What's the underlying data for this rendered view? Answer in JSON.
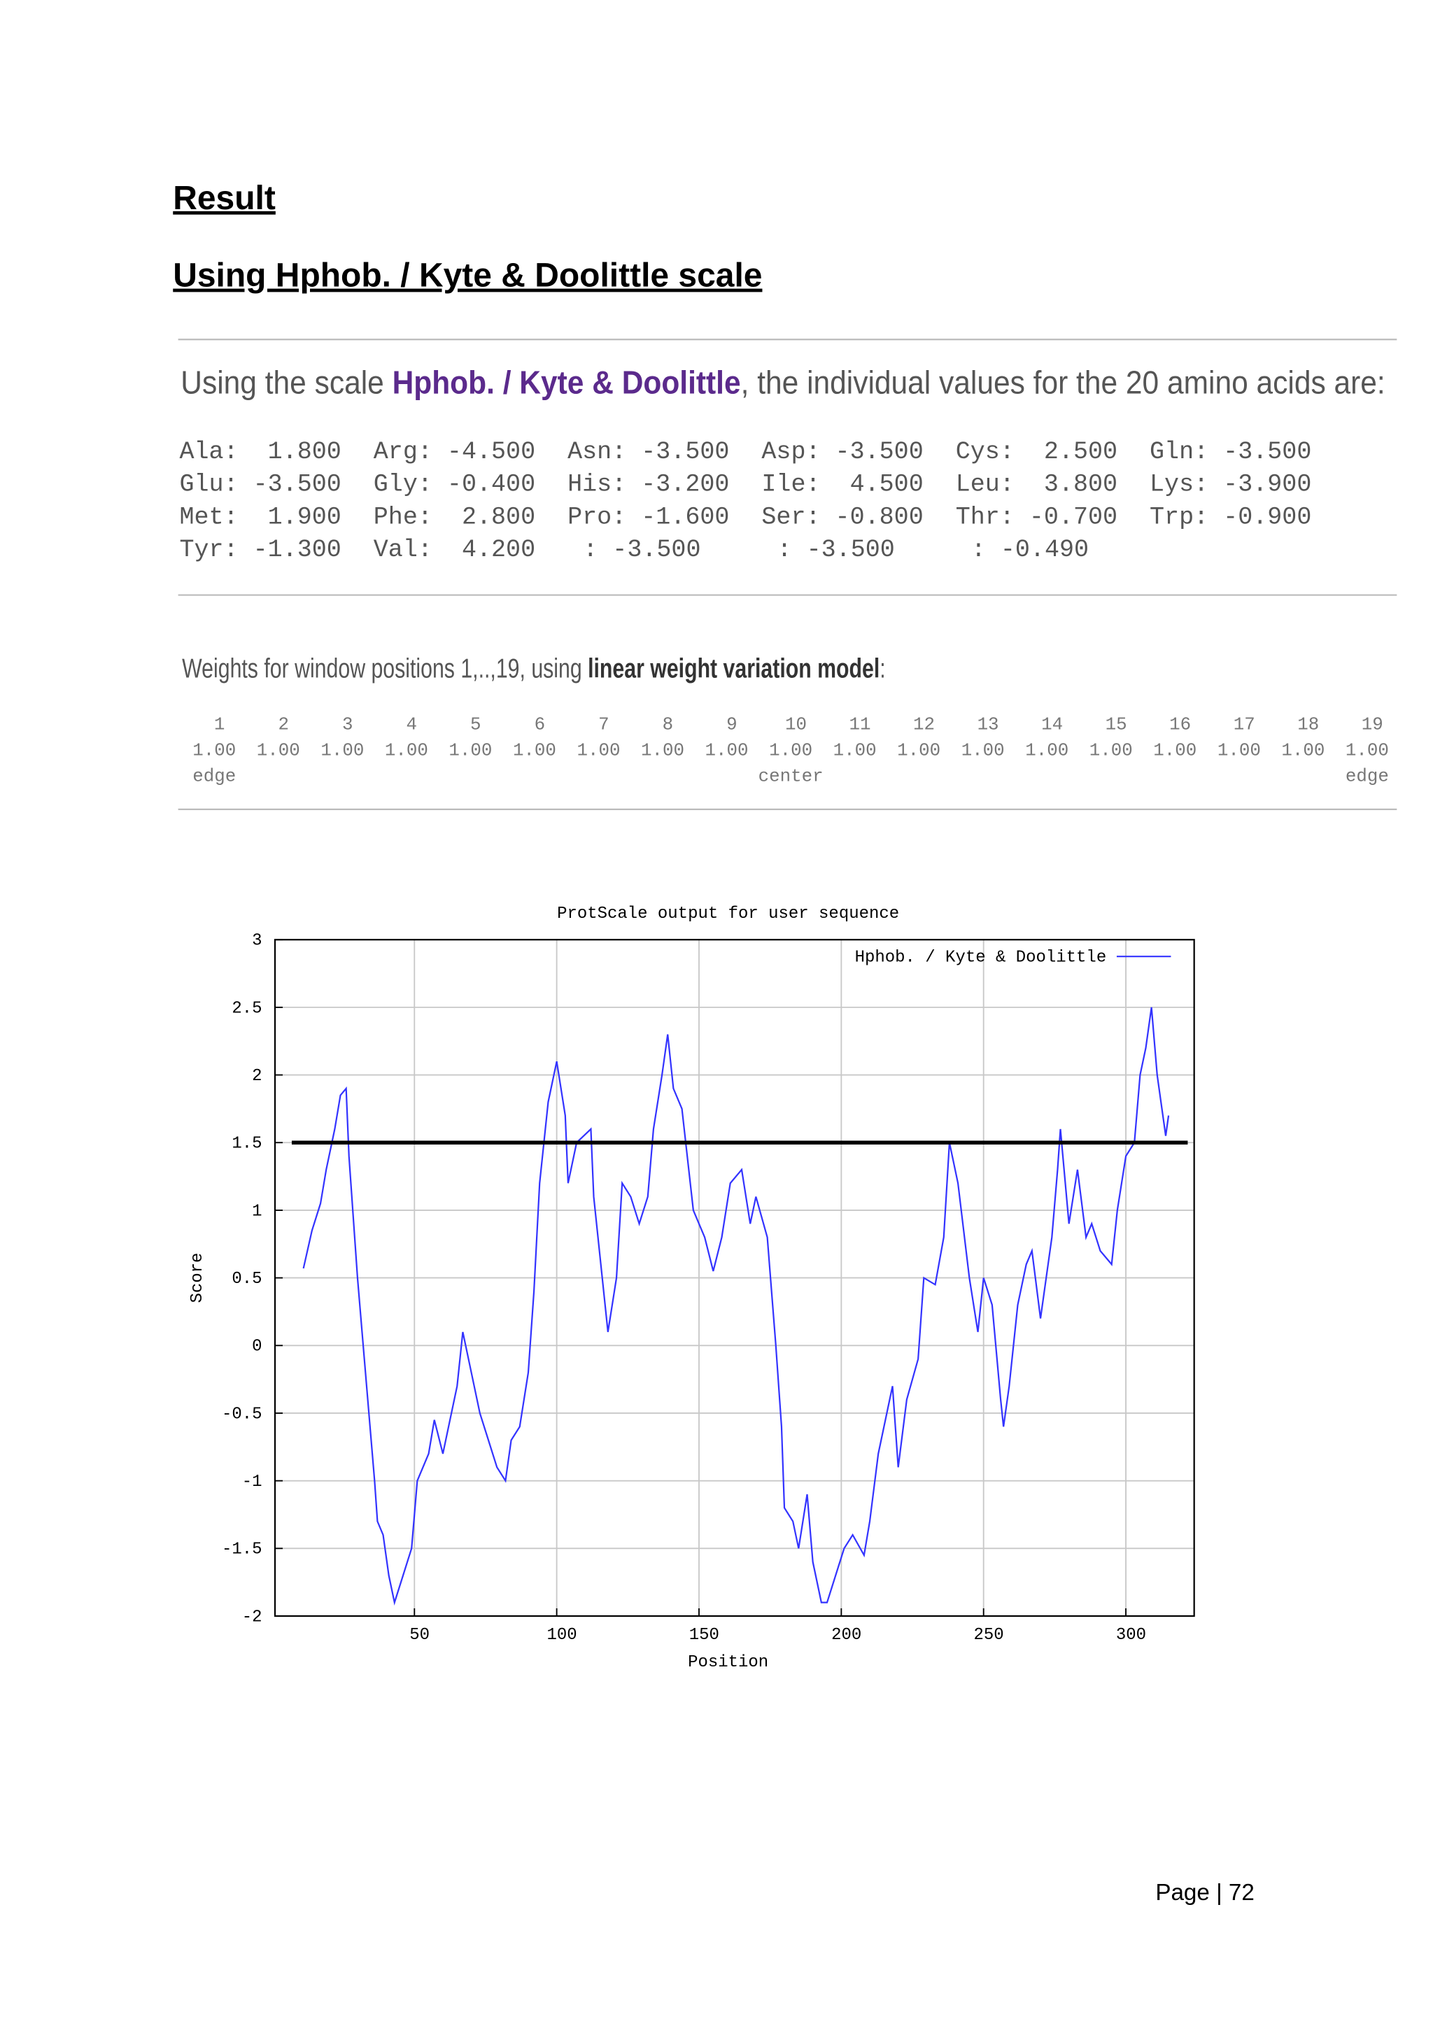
{
  "headings": [
    "Result",
    "Using Hphob. / Kyte & Doolittle scale"
  ],
  "scale_intro": {
    "before": "Using the scale ",
    "scale": "Hphob. / Kyte & Doolittle",
    "after": ", the individual values for the 20 amino acids are:"
  },
  "amino_acid_table": {
    "rows": [
      [
        "Ala:  1.800",
        "Arg: -4.500",
        "Asn: -3.500",
        "Asp: -3.500",
        "Cys:  2.500",
        "Gln: -3.500"
      ],
      [
        "Glu: -3.500",
        "Gly: -0.400",
        "His: -3.200",
        "Ile:  4.500",
        "Leu:  3.800",
        "Lys: -3.900"
      ],
      [
        "Met:  1.900",
        "Phe:  2.800",
        "Pro: -1.600",
        "Ser: -0.800",
        "Thr: -0.700",
        "Trp: -0.900"
      ],
      [
        "Tyr: -1.300",
        "Val:  4.200",
        ": -3.500",
        ": -3.500",
        ": -0.490"
      ]
    ]
  },
  "weights": {
    "intro": "Weights for window positions 1,..,19, using ",
    "model": "linear weight variation model",
    "end": ":",
    "positions": [
      "1",
      "2",
      "3",
      "4",
      "5",
      "6",
      "7",
      "8",
      "9",
      "10",
      "11",
      "12",
      "13",
      "14",
      "15",
      "16",
      "17",
      "18",
      "19"
    ],
    "values": [
      "1.00",
      "1.00",
      "1.00",
      "1.00",
      "1.00",
      "1.00",
      "1.00",
      "1.00",
      "1.00",
      "1.00",
      "1.00",
      "1.00",
      "1.00",
      "1.00",
      "1.00",
      "1.00",
      "1.00",
      "1.00",
      "1.00"
    ],
    "labels": [
      "edge",
      "center",
      "edge"
    ]
  },
  "chart_data": {
    "type": "line",
    "title": "ProtScale output for user sequence",
    "x_label": "Position",
    "y_label": "Score",
    "xlim": [
      1,
      324
    ],
    "xticks": [
      50,
      100,
      150,
      200,
      250,
      300
    ],
    "ylim": [
      -2,
      3
    ],
    "yticks": [
      -2,
      -1.5,
      -1,
      -0.5,
      0,
      0.5,
      1,
      1.5,
      2,
      2.5,
      3
    ],
    "grid": true,
    "legend": "upper right",
    "reference_line": {
      "value": 1.5,
      "color": "#000000"
    },
    "x": [
      11,
      14,
      17,
      19,
      22,
      24,
      26,
      27,
      30,
      32,
      34,
      36,
      37,
      39,
      41,
      43,
      46,
      49,
      51,
      55,
      57,
      60,
      62,
      65,
      67,
      70,
      73,
      76,
      79,
      82,
      84,
      87,
      90,
      92,
      94,
      97,
      100,
      103,
      104,
      107,
      112,
      113,
      116,
      118,
      121,
      123,
      126,
      129,
      132,
      134,
      137,
      139,
      141,
      144,
      148,
      152,
      155,
      158,
      161,
      165,
      168,
      170,
      174,
      177,
      179,
      180,
      183,
      185,
      188,
      190,
      193,
      195,
      198,
      201,
      204,
      208,
      210,
      213,
      216,
      218,
      220,
      223,
      227,
      229,
      233,
      236,
      238,
      241,
      245,
      248,
      250,
      253,
      256,
      257,
      259,
      262,
      265,
      267,
      270,
      274,
      276,
      277,
      280,
      283,
      286,
      288,
      291,
      295,
      297,
      300,
      303,
      305,
      307,
      309,
      311,
      313,
      314,
      315
    ],
    "series": [
      {
        "name": "Hphob. / Kyte & Doolittle",
        "color": "#3333ff",
        "values": [
          0.57,
          0.85,
          1.05,
          1.3,
          1.6,
          1.85,
          1.9,
          1.4,
          0.5,
          0,
          -0.5,
          -1.0,
          -1.3,
          -1.4,
          -1.7,
          -1.9,
          -1.7,
          -1.5,
          -1.0,
          -0.8,
          -0.55,
          -0.8,
          -0.6,
          -0.3,
          0.1,
          -0.2,
          -0.5,
          -0.7,
          -0.9,
          -1.0,
          -0.7,
          -0.6,
          -0.2,
          0.4,
          1.2,
          1.8,
          2.1,
          1.7,
          1.2,
          1.5,
          1.6,
          1.1,
          0.5,
          0.1,
          0.5,
          1.2,
          1.1,
          0.9,
          1.1,
          1.6,
          2.0,
          2.3,
          1.9,
          1.75,
          1.0,
          0.8,
          0.55,
          0.8,
          1.2,
          1.3,
          0.9,
          1.1,
          0.8,
          0.0,
          -0.6,
          -1.2,
          -1.3,
          -1.5,
          -1.1,
          -1.6,
          -1.9,
          -1.9,
          -1.7,
          -1.5,
          -1.4,
          -1.55,
          -1.3,
          -0.8,
          -0.5,
          -0.3,
          -0.9,
          -0.4,
          -0.1,
          0.5,
          0.45,
          0.8,
          1.5,
          1.2,
          0.5,
          0.1,
          0.5,
          0.3,
          -0.4,
          -0.6,
          -0.3,
          0.3,
          0.6,
          0.7,
          0.2,
          0.8,
          1.3,
          1.6,
          0.9,
          1.3,
          0.8,
          0.9,
          0.7,
          0.6,
          1.0,
          1.4,
          1.5,
          2.0,
          2.2,
          2.5,
          2.0,
          1.7,
          1.55,
          1.7
        ]
      }
    ]
  },
  "footer": "Page | 72"
}
